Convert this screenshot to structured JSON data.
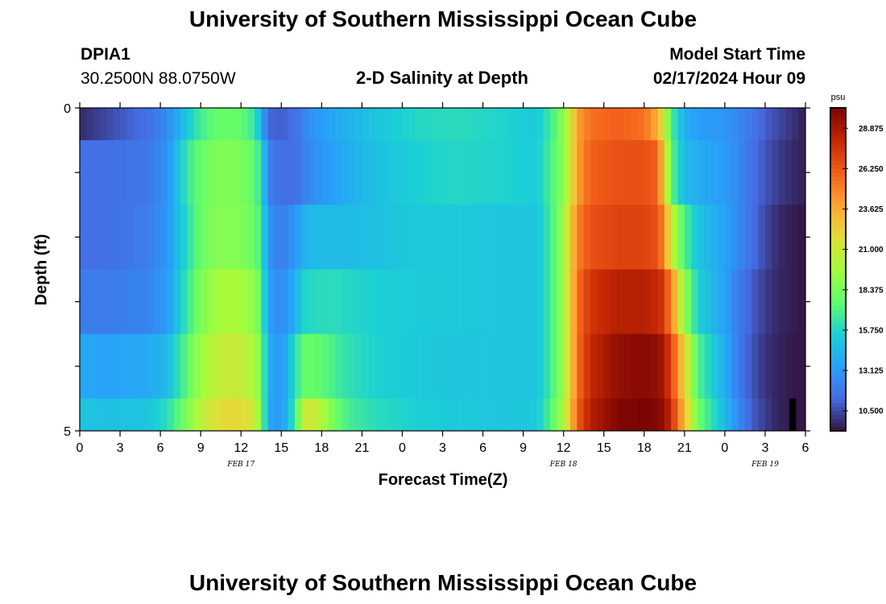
{
  "titles": {
    "top": "University of Southern Mississippi Ocean Cube",
    "bottom": "University of Southern Mississippi Ocean Cube"
  },
  "station": {
    "id": "DPIA1",
    "coords": "30.2500N  88.0750W"
  },
  "plot_title": "2-D Salinity at Depth",
  "model": {
    "label": "Model Start Time",
    "time": "02/17/2024 Hour 09"
  },
  "chart_data": {
    "type": "heatmap",
    "title": "2-D Salinity at Depth",
    "xlabel": "Forecast Time(Z)",
    "ylabel": "Depth (ft)",
    "x_unit": "forecast hours from 02/17 00Z",
    "x_range": [
      0,
      54
    ],
    "y_range": [
      0,
      5
    ],
    "y_ticks": [
      0,
      5
    ],
    "x_tick_labels": [
      "0",
      "3",
      "6",
      "9",
      "12",
      "15",
      "18",
      "21",
      "0",
      "3",
      "6",
      "9",
      "12",
      "15",
      "18",
      "21",
      "0",
      "3",
      "6"
    ],
    "date_labels": [
      {
        "text": "FEB 17",
        "hour": 12
      },
      {
        "text": "FEB 18",
        "hour": 36
      },
      {
        "text": "FEB 19",
        "hour": 51
      }
    ],
    "depth_layers": [
      [
        0,
        0.5
      ],
      [
        0.5,
        1.5
      ],
      [
        1.5,
        2.5
      ],
      [
        2.5,
        3.5
      ],
      [
        3.5,
        4.5
      ],
      [
        4.5,
        5
      ]
    ],
    "colorbar": {
      "unit": "psu",
      "min": 9.2,
      "max": 30.2,
      "tick_values": [
        10.5,
        13.125,
        15.75,
        18.375,
        21.0,
        23.625,
        26.25,
        28.875
      ],
      "tick_labels": [
        "10.500",
        "13.125",
        "15.750",
        "18.375",
        "21.000",
        "23.625",
        "26.250",
        "28.875"
      ]
    },
    "profiles": {
      "hours": [
        0,
        2,
        5,
        6.5,
        8,
        9,
        10,
        11,
        12,
        13,
        13.5,
        14,
        15,
        16,
        16.5,
        17,
        18,
        19,
        20,
        22,
        25,
        28,
        32,
        34,
        35,
        36,
        36.5,
        37,
        38,
        40,
        42,
        43,
        43.4,
        44,
        45,
        46,
        48,
        49,
        50,
        51,
        52,
        53,
        54
      ],
      "layers": [
        [
          9.8,
          10.5,
          11.5,
          12.5,
          15.2,
          16.8,
          17.6,
          17.8,
          17.6,
          16.5,
          14.2,
          11.2,
          11.0,
          11.5,
          12.0,
          12.8,
          13.3,
          13.8,
          14.2,
          15.0,
          15.8,
          16.0,
          15.6,
          15.2,
          16.5,
          19.0,
          21.0,
          24.0,
          25.5,
          26.0,
          25.5,
          23.5,
          21.5,
          17.0,
          14.0,
          13.3,
          13.0,
          12.5,
          11.8,
          11.0,
          10.5,
          10.0,
          9.5
        ],
        [
          11.5,
          11.5,
          11.8,
          12.8,
          16.5,
          17.8,
          18.4,
          18.6,
          18.4,
          17.5,
          16.2,
          12.2,
          11.4,
          11.5,
          12.0,
          12.5,
          13.0,
          13.5,
          14.0,
          14.8,
          15.5,
          15.8,
          15.6,
          15.3,
          16.8,
          19.0,
          21.0,
          24.0,
          26.0,
          26.5,
          26.5,
          26.0,
          23.0,
          17.5,
          14.5,
          14.0,
          13.2,
          12.5,
          11.5,
          10.8,
          10.2,
          9.8,
          9.5
        ],
        [
          11.5,
          11.5,
          12.0,
          13.0,
          16.0,
          17.8,
          18.6,
          18.8,
          18.6,
          17.8,
          16.8,
          13.0,
          12.0,
          13.0,
          14.0,
          14.4,
          14.6,
          14.6,
          14.6,
          14.8,
          15.2,
          15.2,
          15.0,
          15.0,
          16.5,
          19.5,
          22.0,
          25.0,
          26.5,
          27.0,
          27.0,
          26.5,
          25.0,
          21.0,
          17.0,
          15.0,
          13.5,
          12.5,
          11.5,
          10.5,
          9.8,
          9.5,
          9.3
        ],
        [
          12.0,
          12.0,
          12.3,
          13.2,
          16.5,
          18.5,
          19.5,
          20.0,
          19.8,
          19.0,
          17.5,
          13.5,
          12.5,
          14.0,
          15.5,
          15.8,
          16.0,
          16.0,
          15.8,
          15.5,
          15.3,
          15.2,
          15.0,
          15.0,
          16.5,
          19.5,
          22.0,
          25.5,
          27.5,
          28.5,
          28.5,
          28.0,
          27.5,
          25.0,
          19.0,
          15.5,
          13.5,
          12.0,
          11.0,
          10.2,
          9.7,
          9.5,
          9.3
        ],
        [
          13.8,
          13.5,
          13.8,
          14.5,
          17.5,
          19.5,
          20.5,
          21.0,
          20.8,
          20.0,
          18.2,
          14.0,
          13.0,
          16.0,
          17.5,
          17.8,
          17.5,
          16.8,
          16.2,
          15.6,
          15.2,
          15.0,
          15.0,
          15.0,
          16.5,
          19.5,
          22.0,
          25.5,
          28.0,
          29.5,
          29.8,
          29.5,
          29.0,
          27.0,
          22.0,
          17.0,
          14.0,
          12.0,
          10.8,
          10.0,
          9.6,
          9.4,
          9.3
        ],
        [
          15.0,
          14.8,
          15.0,
          16.0,
          18.5,
          20.5,
          21.5,
          22.0,
          22.0,
          21.0,
          18.5,
          13.8,
          13.0,
          16.5,
          20.0,
          21.5,
          20.0,
          18.0,
          16.8,
          16.0,
          15.5,
          15.2,
          15.0,
          15.2,
          17.0,
          20.0,
          22.5,
          26.0,
          28.5,
          30.0,
          30.2,
          30.0,
          29.5,
          28.0,
          23.0,
          18.0,
          14.5,
          12.5,
          11.0,
          10.2,
          9.6,
          9.4,
          9.3
        ]
      ]
    },
    "colors": {
      "background": "#ffffff",
      "frame": "#000000",
      "marker": "#000000"
    }
  }
}
